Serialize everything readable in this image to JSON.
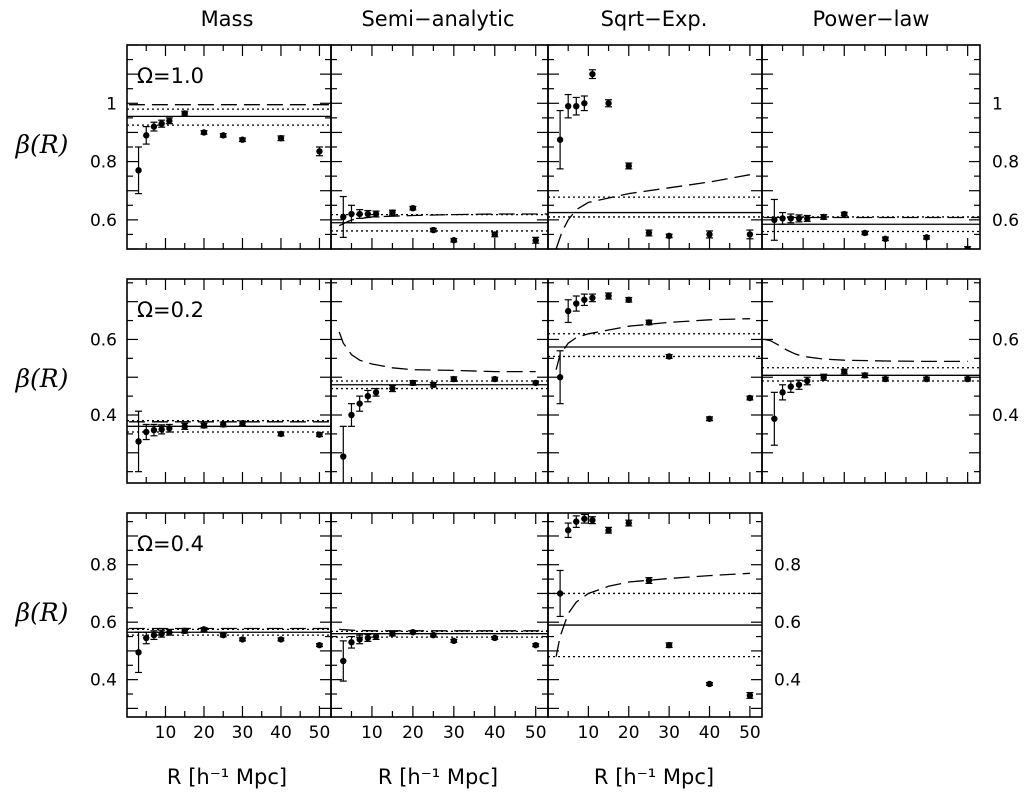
{
  "column_titles": [
    "Mass",
    "Semi−analytic",
    "Sqrt−Exp.",
    "Power−law"
  ],
  "ylabel": "β(R)",
  "xlabel": "R [h⁻¹ Mpc]",
  "x_ticks": [
    "10",
    "20",
    "30",
    "40",
    "50"
  ],
  "style": {
    "ink": "#000000",
    "background": "#ffffff"
  },
  "chart_data": {
    "type": "scatter",
    "x": [
      3,
      5,
      7,
      9,
      11,
      15,
      20,
      25,
      30,
      40,
      50
    ],
    "xlim": [
      0,
      53
    ],
    "rows": [
      {
        "label": "Ω=1.0",
        "ylim": [
          0.5,
          1.2
        ],
        "y_ticks": [
          0.6,
          0.8,
          1
        ],
        "y_tick_labels": [
          "0.6",
          "0.8",
          "1"
        ],
        "panels": [
          {
            "column": "Mass",
            "points": [
              0.77,
              0.89,
              0.92,
              0.93,
              0.94,
              0.965,
              0.9,
              0.89,
              0.875,
              0.88,
              0.835
            ],
            "errors": [
              0.08,
              0.03,
              0.015,
              0.012,
              0.01,
              0.008,
              0.006,
              0.006,
              0.006,
              0.008,
              0.015
            ],
            "solid": 0.955,
            "dotted": [
              0.98,
              0.925
            ],
            "dashed": {
              "x": [
                0.5,
                53
              ],
              "y": [
                0.995,
                0.995
              ]
            }
          },
          {
            "column": "Semi−analytic",
            "points": [
              0.61,
              0.62,
              0.62,
              0.62,
              0.62,
              0.625,
              0.64,
              0.565,
              0.53,
              0.55,
              0.53
            ],
            "errors": [
              0.07,
              0.03,
              0.015,
              0.012,
              0.01,
              0.008,
              0.006,
              0.006,
              0.006,
              0.008,
              0.01
            ],
            "solid": 0.59,
            "dotted": [
              0.618,
              0.562
            ],
            "dashed": {
              "x": [
                2,
                5,
                10,
                20,
                30,
                40,
                50,
                53
              ],
              "y": [
                0.58,
                0.6,
                0.61,
                0.615,
                0.618,
                0.62,
                0.62,
                0.62
              ]
            }
          },
          {
            "column": "Sqrt−Exp.",
            "points": [
              0.875,
              0.99,
              0.99,
              1.0,
              1.1,
              1.0,
              0.785,
              0.555,
              0.545,
              0.55,
              0.55
            ],
            "errors": [
              0.1,
              0.04,
              0.03,
              0.025,
              0.015,
              0.012,
              0.01,
              0.01,
              0.006,
              0.012,
              0.015
            ],
            "solid": 0.625,
            "dotted": [
              0.678,
              0.61
            ],
            "dashed": {
              "x": [
                2,
                3.5,
                5,
                7,
                10,
                15,
                20,
                30,
                40,
                50
              ],
              "y": [
                0.5,
                0.56,
                0.6,
                0.635,
                0.66,
                0.675,
                0.69,
                0.71,
                0.73,
                0.755
              ]
            }
          },
          {
            "column": "Power−law",
            "points": [
              0.6,
              0.605,
              0.605,
              0.605,
              0.605,
              0.61,
              0.62,
              0.555,
              0.535,
              0.54,
              0.5
            ],
            "errors": [
              0.07,
              0.02,
              0.015,
              0.012,
              0.01,
              0.008,
              0.006,
              0.006,
              0.006,
              0.006,
              0.008
            ],
            "solid": 0.585,
            "dotted": [
              0.61,
              0.56
            ],
            "dashed": {
              "x": [
                0.5,
                53
              ],
              "y": [
                0.608,
                0.608
              ]
            }
          }
        ]
      },
      {
        "label": "Ω=0.2",
        "ylim": [
          0.22,
          0.76
        ],
        "y_ticks": [
          0.4,
          0.6
        ],
        "y_tick_labels": [
          "0.4",
          "0.6"
        ],
        "panels": [
          {
            "column": "Mass",
            "points": [
              0.33,
              0.355,
              0.36,
              0.362,
              0.365,
              0.37,
              0.372,
              0.375,
              0.378,
              0.35,
              0.348
            ],
            "errors": [
              0.08,
              0.02,
              0.015,
              0.012,
              0.01,
              0.008,
              0.006,
              0.006,
              0.006,
              0.005,
              0.005
            ],
            "solid": 0.37,
            "dotted": [
              0.385,
              0.355
            ],
            "dashed": {
              "x": [
                0.5,
                53
              ],
              "y": [
                0.382,
                0.382
              ]
            }
          },
          {
            "column": "Semi−analytic",
            "points": [
              0.29,
              0.4,
              0.43,
              0.45,
              0.46,
              0.47,
              0.485,
              0.48,
              0.495,
              0.495,
              0.485
            ],
            "errors": [
              0.08,
              0.03,
              0.02,
              0.015,
              0.01,
              0.008,
              0.006,
              0.006,
              0.006,
              0.005,
              0.005
            ],
            "solid": 0.48,
            "dotted": [
              0.49,
              0.47
            ],
            "dashed": {
              "x": [
                2,
                3,
                5,
                7,
                10,
                15,
                20,
                30,
                40,
                50
              ],
              "y": [
                0.62,
                0.59,
                0.56,
                0.545,
                0.535,
                0.525,
                0.52,
                0.518,
                0.515,
                0.515
              ]
            }
          },
          {
            "column": "Sqrt−Exp.",
            "points": [
              0.5,
              0.675,
              0.695,
              0.705,
              0.71,
              0.715,
              0.705,
              0.645,
              0.555,
              0.39,
              0.445
            ],
            "errors": [
              0.07,
              0.03,
              0.02,
              0.015,
              0.01,
              0.008,
              0.006,
              0.006,
              0.005,
              0.005,
              0.005
            ],
            "solid": 0.58,
            "dotted": [
              0.615,
              0.555
            ],
            "dashed": {
              "x": [
                2,
                3,
                5,
                7,
                10,
                15,
                20,
                30,
                40,
                50
              ],
              "y": [
                0.52,
                0.56,
                0.59,
                0.605,
                0.615,
                0.625,
                0.635,
                0.645,
                0.652,
                0.655
              ]
            }
          },
          {
            "column": "Power−law",
            "points": [
              0.39,
              0.46,
              0.475,
              0.48,
              0.49,
              0.5,
              0.515,
              0.505,
              0.495,
              0.495,
              0.495
            ],
            "errors": [
              0.07,
              0.02,
              0.015,
              0.012,
              0.01,
              0.008,
              0.006,
              0.006,
              0.005,
              0.005,
              0.005
            ],
            "solid": 0.505,
            "dotted": [
              0.525,
              0.49
            ],
            "dashed": {
              "x": [
                0.5,
                2,
                4,
                6,
                8,
                10,
                15,
                20,
                30,
                40,
                50
              ],
              "y": [
                0.6,
                0.597,
                0.585,
                0.572,
                0.562,
                0.555,
                0.548,
                0.545,
                0.543,
                0.542,
                0.542
              ]
            }
          }
        ]
      },
      {
        "label": "Ω=0.4",
        "ylim": [
          0.27,
          0.98
        ],
        "y_ticks": [
          0.4,
          0.6,
          0.8
        ],
        "y_tick_labels": [
          "0.4",
          "0.6",
          "0.8"
        ],
        "panels": [
          {
            "column": "Mass",
            "points": [
              0.495,
              0.545,
              0.555,
              0.56,
              0.565,
              0.57,
              0.575,
              0.555,
              0.54,
              0.54,
              0.52
            ],
            "errors": [
              0.07,
              0.02,
              0.015,
              0.012,
              0.01,
              0.008,
              0.006,
              0.006,
              0.005,
              0.005,
              0.005
            ],
            "solid": 0.565,
            "dotted": [
              0.575,
              0.555
            ],
            "dashed": {
              "x": [
                0.5,
                53
              ],
              "y": [
                0.578,
                0.578
              ]
            }
          },
          {
            "column": "Semi−analytic",
            "points": [
              0.465,
              0.53,
              0.54,
              0.545,
              0.55,
              0.56,
              0.565,
              0.555,
              0.535,
              0.545,
              0.52
            ],
            "errors": [
              0.07,
              0.02,
              0.015,
              0.012,
              0.01,
              0.008,
              0.006,
              0.006,
              0.005,
              0.005,
              0.005
            ],
            "solid": 0.56,
            "dotted": [
              0.568,
              0.548
            ],
            "dashed": {
              "x": [
                2,
                5,
                10,
                20,
                30,
                40,
                50,
                53
              ],
              "y": [
                0.575,
                0.572,
                0.57,
                0.57,
                0.57,
                0.57,
                0.57,
                0.57
              ]
            }
          },
          {
            "column": "Sqrt−Exp.",
            "points": [
              0.7,
              0.92,
              0.95,
              0.96,
              0.955,
              0.92,
              0.945,
              0.745,
              0.52,
              0.385,
              0.345
            ],
            "errors": [
              0.08,
              0.025,
              0.02,
              0.015,
              0.012,
              0.01,
              0.01,
              0.01,
              0.008,
              0.005,
              0.01
            ],
            "solid": 0.59,
            "dotted": [
              0.7,
              0.48
            ],
            "dashed": {
              "x": [
                2,
                3,
                5,
                7,
                10,
                15,
                20,
                30,
                40,
                50
              ],
              "y": [
                0.48,
                0.55,
                0.63,
                0.67,
                0.7,
                0.725,
                0.74,
                0.752,
                0.762,
                0.77
              ]
            }
          }
        ]
      }
    ]
  }
}
